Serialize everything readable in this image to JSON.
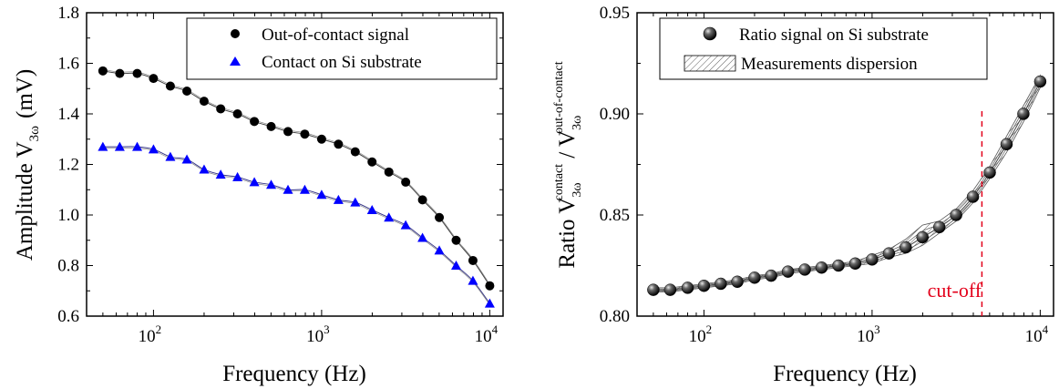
{
  "chart_data": [
    {
      "type": "line",
      "xscale": "log",
      "xlabel": "Frequency (Hz)",
      "ylabel": "Amplitude V",
      "ylabel_sub": "3ω",
      "ylabel_unit": "(mV)",
      "xlim": [
        40,
        12000
      ],
      "ylim": [
        0.6,
        1.8
      ],
      "xticks": [
        100,
        1000,
        10000
      ],
      "xtick_labels": [
        {
          "base": "10",
          "exp": "2"
        },
        {
          "base": "10",
          "exp": "3"
        },
        {
          "base": "10",
          "exp": "4"
        }
      ],
      "yticks": [
        0.6,
        0.8,
        1.0,
        1.2,
        1.4,
        1.6,
        1.8
      ],
      "ytick_labels": [
        "0.6",
        "0.8",
        "1.0",
        "1.2",
        "1.4",
        "1.6",
        "1.8"
      ],
      "legend_position": "top-right",
      "series": [
        {
          "name": "Out-of-contact signal",
          "marker": "circle",
          "color": "#000000",
          "x": [
            50,
            63,
            80,
            100,
            126,
            158,
            200,
            251,
            316,
            398,
            501,
            631,
            794,
            1000,
            1259,
            1585,
            1995,
            2512,
            3162,
            3981,
            5012,
            6310,
            7943,
            10000
          ],
          "y": [
            1.57,
            1.56,
            1.56,
            1.54,
            1.51,
            1.49,
            1.45,
            1.42,
            1.4,
            1.37,
            1.35,
            1.33,
            1.32,
            1.3,
            1.28,
            1.25,
            1.21,
            1.17,
            1.13,
            1.06,
            0.99,
            0.9,
            0.82,
            0.72
          ]
        },
        {
          "name": "Contact on Si substrate",
          "marker": "triangle",
          "color": "#0000ff",
          "x": [
            50,
            63,
            80,
            100,
            126,
            158,
            200,
            251,
            316,
            398,
            501,
            631,
            794,
            1000,
            1259,
            1585,
            1995,
            2512,
            3162,
            3981,
            5012,
            6310,
            7943,
            10000
          ],
          "y": [
            1.27,
            1.27,
            1.27,
            1.26,
            1.23,
            1.22,
            1.18,
            1.16,
            1.15,
            1.13,
            1.12,
            1.1,
            1.1,
            1.08,
            1.06,
            1.05,
            1.02,
            0.99,
            0.96,
            0.91,
            0.86,
            0.8,
            0.74,
            0.65
          ]
        }
      ]
    },
    {
      "type": "line",
      "xscale": "log",
      "xlabel": "Frequency (Hz)",
      "ylabel": "Ratio V",
      "ylabel_num_sub": "3ω",
      "ylabel_num_sup": "contact",
      "ylabel_slash": " / V",
      "ylabel_den_sub": "3ω",
      "ylabel_den_sup": "out-of-contact",
      "xlim": [
        40,
        12000
      ],
      "ylim": [
        0.8,
        0.95
      ],
      "xticks": [
        100,
        1000,
        10000
      ],
      "xtick_labels": [
        {
          "base": "10",
          "exp": "2"
        },
        {
          "base": "10",
          "exp": "3"
        },
        {
          "base": "10",
          "exp": "4"
        }
      ],
      "yticks": [
        0.8,
        0.85,
        0.9,
        0.95
      ],
      "ytick_labels": [
        "0.80",
        "0.85",
        "0.90",
        "0.95"
      ],
      "legend_position": "top-left",
      "series": [
        {
          "name": "Ratio signal on Si substrate",
          "marker": "sphere",
          "color": "#000000",
          "x": [
            50,
            63,
            80,
            100,
            126,
            158,
            200,
            251,
            316,
            398,
            501,
            631,
            794,
            1000,
            1259,
            1585,
            1995,
            2512,
            3162,
            3981,
            5012,
            6310,
            7943,
            10000
          ],
          "y": [
            0.813,
            0.813,
            0.814,
            0.815,
            0.816,
            0.817,
            0.819,
            0.82,
            0.822,
            0.823,
            0.824,
            0.825,
            0.826,
            0.828,
            0.831,
            0.834,
            0.839,
            0.844,
            0.85,
            0.859,
            0.871,
            0.885,
            0.9,
            0.916
          ]
        }
      ],
      "dispersion": {
        "name": "Measurements dispersion",
        "pattern": "hatch",
        "lower": [
          0.812,
          0.812,
          0.813,
          0.814,
          0.815,
          0.816,
          0.818,
          0.819,
          0.821,
          0.822,
          0.823,
          0.824,
          0.825,
          0.826,
          0.829,
          0.831,
          0.835,
          0.841,
          0.847,
          0.856,
          0.868,
          0.881,
          0.896,
          0.913
        ],
        "upper": [
          0.814,
          0.814,
          0.815,
          0.816,
          0.817,
          0.818,
          0.82,
          0.821,
          0.823,
          0.824,
          0.825,
          0.826,
          0.827,
          0.83,
          0.833,
          0.838,
          0.845,
          0.847,
          0.853,
          0.862,
          0.874,
          0.889,
          0.904,
          0.919
        ]
      },
      "annotation": {
        "text": "cut-off",
        "x": 4500,
        "color": "#e3001b"
      }
    }
  ]
}
